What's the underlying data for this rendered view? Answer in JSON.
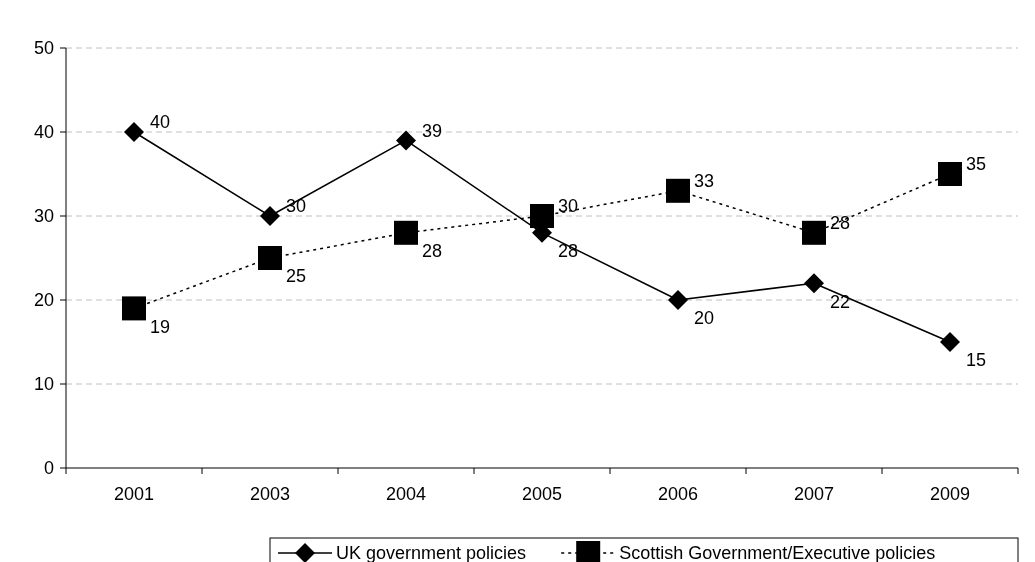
{
  "chart_data": {
    "type": "line",
    "categories": [
      "2001",
      "2003",
      "2004",
      "2005",
      "2006",
      "2007",
      "2009"
    ],
    "series": [
      {
        "name": "UK government policies",
        "color": "#000000",
        "values": [
          40,
          30,
          39,
          28,
          20,
          22,
          15
        ],
        "marker": "diamond",
        "line_style": "solid"
      },
      {
        "name": "Scottish Government/Executive policies",
        "color": "#000000",
        "values": [
          19,
          25,
          28,
          30,
          33,
          28,
          35
        ],
        "marker": "square",
        "line_style": "dotted"
      }
    ],
    "ylim": [
      0,
      50
    ],
    "yticks": [
      0,
      10,
      20,
      30,
      40,
      50
    ],
    "grid": "y",
    "legend": "bottom",
    "data_labels": true
  }
}
